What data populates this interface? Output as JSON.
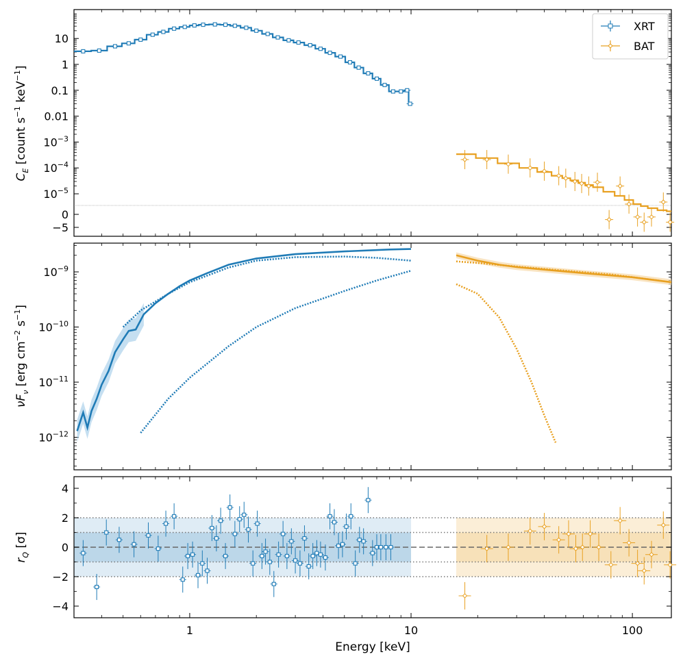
{
  "figure": {
    "xlabel": "Energy [keV]",
    "x_scale": "log",
    "xlim": [
      0.3,
      150
    ],
    "x_ticks": [
      {
        "v": 1,
        "label": "1"
      },
      {
        "v": 10,
        "label": "10"
      },
      {
        "v": 100,
        "label": "100"
      }
    ],
    "colors": {
      "xrt": "#1f7bb6",
      "bat": "#e8a020",
      "xrt_light": "#9ecae8",
      "bat_light": "#f7d9a8"
    }
  },
  "chart_data": [
    {
      "type": "scatter",
      "panel": "count-rate",
      "ylabel": "C_E [count s^-1 keV^-1]",
      "y_scale": "symlog",
      "legend": {
        "placement": "top-right",
        "entries": [
          "XRT",
          "BAT"
        ]
      },
      "y_ticks": [
        "10",
        "1",
        "0.1",
        "0.01",
        "10^-3",
        "10^-4",
        "10^-5",
        "0",
        "−5"
      ],
      "series": [
        {
          "name": "XRT",
          "marker": "square",
          "x": [
            0.33,
            0.39,
            0.46,
            0.53,
            0.6,
            0.68,
            0.76,
            0.85,
            0.95,
            1.05,
            1.15,
            1.3,
            1.45,
            1.6,
            1.8,
            2.0,
            2.25,
            2.5,
            2.8,
            3.1,
            3.5,
            3.9,
            4.3,
            4.8,
            5.3,
            5.8,
            6.4,
            7.0,
            7.6,
            8.3,
            9.0,
            9.6,
            9.9
          ],
          "y": [
            3.2,
            3.4,
            5.0,
            6.5,
            9.0,
            14,
            18,
            24,
            28,
            32,
            34,
            35,
            34,
            31,
            26,
            20,
            15,
            11,
            8.5,
            7.0,
            5.5,
            4.0,
            2.8,
            2.0,
            1.2,
            0.75,
            0.45,
            0.28,
            0.16,
            0.09,
            0.09,
            0.1,
            0.03
          ]
        },
        {
          "name": "BAT",
          "marker": "diamond",
          "x": [
            17.5,
            22,
            27.5,
            34.5,
            40,
            46.5,
            50,
            55,
            59,
            63.5,
            69.5,
            78.5,
            88,
            96.5,
            105.5,
            113,
            122,
            138,
            148
          ],
          "y": [
            0.00021,
            0.00021,
            0.00014,
            0.0001,
            7.5e-05,
            5e-05,
            4e-05,
            3e-05,
            2.5e-05,
            2e-05,
            2.8e-05,
            -2,
            2e-05,
            5e-06,
            -1,
            -3,
            -1,
            6e-06,
            -3
          ]
        }
      ]
    },
    {
      "type": "line",
      "panel": "nuFnu",
      "ylabel": "νF_ν [erg cm^-2 s^-1]",
      "y_scale": "log",
      "ylim": [
        2.5e-13,
        3.2e-09
      ],
      "y_ticks": [
        "10^-9",
        "10^-10",
        "10^-11",
        "10^-12"
      ],
      "series": [
        {
          "name": "XRT total",
          "style": "solid",
          "x": [
            0.31,
            0.33,
            0.345,
            0.36,
            0.38,
            0.4,
            0.43,
            0.46,
            0.5,
            0.53,
            0.57,
            0.62,
            0.7,
            0.8,
            0.9,
            1.0,
            1.2,
            1.5,
            2,
            3,
            5,
            8,
            10
          ],
          "y": [
            1.3e-12,
            2.8e-12,
            1.5e-12,
            3e-12,
            5e-12,
            9e-12,
            1.6e-11,
            3.5e-11,
            6e-11,
            8.5e-11,
            9e-11,
            1.7e-10,
            2.7e-10,
            4e-10,
            5.5e-10,
            7e-10,
            9.5e-10,
            1.35e-09,
            1.75e-09,
            2.1e-09,
            2.35e-09,
            2.55e-09,
            2.6e-09
          ]
        },
        {
          "name": "XRT component 1",
          "style": "dotted",
          "x": [
            0.5,
            0.6,
            0.8,
            1.0,
            1.5,
            2,
            3,
            5,
            7,
            10
          ],
          "y": [
            1e-10,
            2e-10,
            4e-10,
            6.5e-10,
            1.2e-09,
            1.6e-09,
            1.85e-09,
            1.9e-09,
            1.8e-09,
            1.6e-09
          ]
        },
        {
          "name": "XRT component 2",
          "style": "dotted",
          "x": [
            0.47,
            0.6,
            0.8,
            1.0,
            1.5,
            2,
            3,
            5,
            7,
            10
          ],
          "y": [
            2.5e-13,
            1.2e-12,
            5e-12,
            1.2e-11,
            4.5e-11,
            1e-10,
            2.2e-10,
            4.5e-10,
            7e-10,
            1.05e-09
          ]
        },
        {
          "name": "BAT total",
          "style": "solid",
          "x": [
            16,
            20,
            25,
            30,
            40,
            60,
            100,
            150
          ],
          "y": [
            2e-09,
            1.6e-09,
            1.35e-09,
            1.22e-09,
            1.1e-09,
            9.5e-10,
            8e-10,
            6.5e-10
          ]
        },
        {
          "name": "BAT component 1",
          "style": "dotted",
          "x": [
            16,
            20,
            30,
            50,
            80,
            150
          ],
          "y": [
            1.55e-09,
            1.45e-09,
            1.25e-09,
            1.05e-09,
            9e-10,
            6.5e-10
          ]
        },
        {
          "name": "BAT component 2",
          "style": "dotted",
          "x": [
            16,
            20,
            25,
            30,
            35,
            40,
            45,
            50
          ],
          "y": [
            6e-10,
            4e-10,
            1.5e-10,
            4e-11,
            1e-11,
            2.5e-12,
            8e-13,
            2.5e-13
          ]
        }
      ]
    },
    {
      "type": "scatter",
      "panel": "residuals",
      "ylabel": "r_Q [σ]",
      "ylim": [
        -4.7,
        4.7
      ],
      "y_ticks": [
        4,
        2,
        0,
        -2,
        -4
      ],
      "bands": [
        1,
        2
      ],
      "series": [
        {
          "name": "XRT",
          "x": [
            0.33,
            0.38,
            0.42,
            0.48,
            0.56,
            0.65,
            0.72,
            0.78,
            0.85,
            0.93,
            0.98,
            1.03,
            1.09,
            1.14,
            1.2,
            1.26,
            1.32,
            1.38,
            1.45,
            1.52,
            1.6,
            1.68,
            1.76,
            1.84,
            1.93,
            2.02,
            2.12,
            2.2,
            2.3,
            2.4,
            2.52,
            2.64,
            2.75,
            2.88,
            3.0,
            3.15,
            3.3,
            3.45,
            3.6,
            3.75,
            3.9,
            4.1,
            4.3,
            4.5,
            4.7,
            4.9,
            5.1,
            5.35,
            5.6,
            5.85,
            6.1,
            6.4,
            6.7,
            7.0,
            7.3,
            7.7,
            8.1,
            8.5,
            9.0,
            9.4,
            9.8
          ],
          "y": [
            -0.4,
            -2.7,
            1.0,
            0.5,
            0.2,
            0.8,
            -0.1,
            1.6,
            2.1,
            -2.2,
            -0.6,
            -0.5,
            -1.9,
            -1.1,
            -1.6,
            1.3,
            0.6,
            1.8,
            -0.6,
            2.7,
            0.9,
            1.9,
            2.2,
            1.2,
            -1.1,
            1.6,
            -0.6,
            -0.3,
            -1.0,
            -2.5,
            -0.5,
            0.9,
            -0.6,
            0.4,
            -0.9,
            -1.1,
            0.6,
            -1.3,
            -0.6,
            -0.4,
            -0.5,
            -0.7,
            2.1,
            1.7,
            0.1,
            0.2,
            1.4,
            2.1,
            -1.1,
            0.5,
            0.4,
            3.2,
            -0.4,
            0.0,
            0.0,
            0.0,
            0.0,
            0.0,
            0.0,
            0.0,
            0.0
          ]
        },
        {
          "name": "BAT",
          "x": [
            17.5,
            22,
            27.5,
            34.5,
            40,
            46.5,
            51.5,
            55.5,
            59.5,
            64.5,
            70.5,
            80,
            88,
            96.5,
            105.5,
            113,
            122,
            138,
            148
          ],
          "y": [
            -3.3,
            -0.1,
            0.0,
            1.1,
            1.4,
            0.5,
            0.9,
            -0.1,
            0.0,
            0.9,
            0.0,
            -1.2,
            1.8,
            0.3,
            -1.1,
            -1.6,
            -0.5,
            1.5,
            -1.2
          ]
        }
      ]
    }
  ]
}
